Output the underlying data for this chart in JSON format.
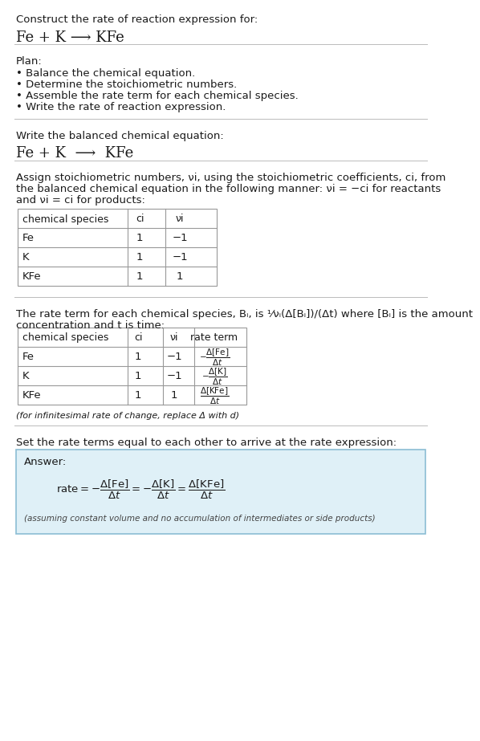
{
  "title_line1": "Construct the rate of reaction expression for:",
  "title_line2": "Fe + K ⟶ KFe",
  "plan_header": "Plan:",
  "plan_items": [
    "• Balance the chemical equation.",
    "• Determine the stoichiometric numbers.",
    "• Assemble the rate term for each chemical species.",
    "• Write the rate of reaction expression."
  ],
  "section2_header": "Write the balanced chemical equation:",
  "section2_equation": "Fe + K  ⟶  KFe",
  "section3_lines": [
    "Assign stoichiometric numbers, νi, using the stoichiometric coefficients, ci, from",
    "the balanced chemical equation in the following manner: νi = −ci for reactants",
    "and νi = ci for products:"
  ],
  "table1_headers": [
    "chemical species",
    "ci",
    "νi"
  ],
  "table1_rows": [
    [
      "Fe",
      "1",
      "−1"
    ],
    [
      "K",
      "1",
      "−1"
    ],
    [
      "KFe",
      "1",
      "1"
    ]
  ],
  "section4_lines": [
    "The rate term for each chemical species, Bi, is (1/νi)(Δ[Bi]/Δt) where [Bi] is the amount",
    "concentration and t is time:"
  ],
  "table2_headers": [
    "chemical species",
    "ci",
    "νi",
    "rate term"
  ],
  "table2_rows": [
    [
      "Fe",
      "1",
      "−1"
    ],
    [
      "K",
      "1",
      "−1"
    ],
    [
      "KFe",
      "1",
      "1"
    ]
  ],
  "infinitesimal_note": "(for infinitesimal rate of change, replace Δ with d)",
  "section5_text": "Set the rate terms equal to each other to arrive at the rate expression:",
  "answer_header": "Answer:",
  "answer_note": "(assuming constant volume and no accumulation of intermediates or side products)",
  "bg_color": "#ffffff",
  "answer_bg_color": "#dff0f7",
  "answer_border_color": "#8bbdd4",
  "text_color": "#1a1a1a",
  "table_border_color": "#999999",
  "sep_color": "#bbbbbb"
}
